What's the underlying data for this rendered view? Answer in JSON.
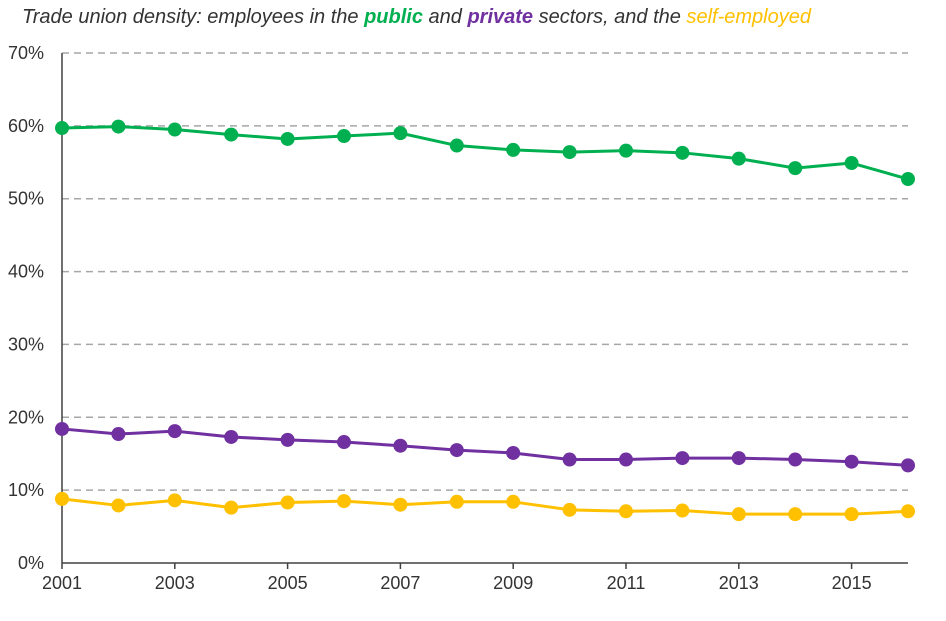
{
  "title": {
    "part1": "Trade union density: employees in the ",
    "public": "public",
    "part2": " and ",
    "private": "private",
    "part3": " sectors, and the ",
    "self": "self-employed"
  },
  "chart_data": {
    "type": "line",
    "title": "Trade union density: employees in the public and private sectors, and the self-employed",
    "x": [
      2001,
      2002,
      2003,
      2004,
      2005,
      2006,
      2007,
      2008,
      2009,
      2010,
      2011,
      2012,
      2013,
      2014,
      2015,
      2016
    ],
    "x_tick_labels": [
      "2001",
      "2003",
      "2005",
      "2007",
      "2009",
      "2011",
      "2013",
      "2015"
    ],
    "x_ticks": [
      2001,
      2003,
      2005,
      2007,
      2009,
      2011,
      2013,
      2015
    ],
    "y_tick_labels": [
      "0%",
      "10%",
      "20%",
      "30%",
      "40%",
      "50%",
      "60%",
      "70%"
    ],
    "y_ticks": [
      0,
      10,
      20,
      30,
      40,
      50,
      60,
      70
    ],
    "xlim": [
      2001,
      2016
    ],
    "ylim": [
      0,
      70
    ],
    "grid": "horizontal dashed",
    "series": [
      {
        "name": "public",
        "color": "#00b050",
        "values": [
          59.7,
          59.9,
          59.5,
          58.8,
          58.2,
          58.6,
          59.0,
          57.3,
          56.7,
          56.4,
          56.6,
          56.3,
          55.5,
          54.2,
          54.9,
          52.7
        ]
      },
      {
        "name": "private",
        "color": "#7030a0",
        "values": [
          18.4,
          17.7,
          18.1,
          17.3,
          16.9,
          16.6,
          16.1,
          15.5,
          15.1,
          14.2,
          14.2,
          14.4,
          14.4,
          14.2,
          13.9,
          13.4
        ]
      },
      {
        "name": "self-employed",
        "color": "#ffc000",
        "values": [
          8.8,
          7.9,
          8.6,
          7.6,
          8.3,
          8.5,
          8.0,
          8.4,
          8.4,
          7.3,
          7.1,
          7.2,
          6.7,
          6.7,
          6.7,
          7.1
        ]
      }
    ]
  }
}
